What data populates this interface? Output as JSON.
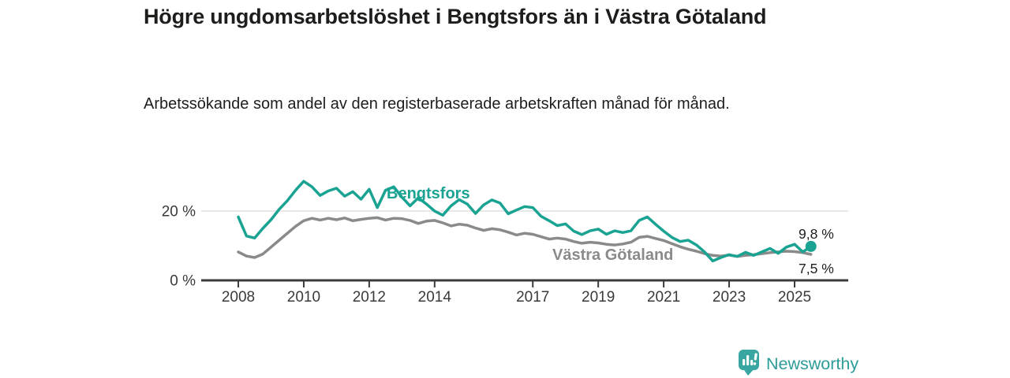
{
  "header": {
    "title": "Högre ungdomsarbetslöshet i Bengtsfors än i Västra Götaland",
    "subtitle": "Arbetssökande som andel av den registerbaserade arbetskraften månad för månad."
  },
  "chart_data": {
    "type": "line",
    "title": "Högre ungdomsarbetslöshet i Bengtsfors än i Västra Götaland",
    "subtitle": "Arbetssökande som andel av den registerbaserade arbetskraften månad för månad.",
    "xlabel": "",
    "ylabel": "",
    "xlim": [
      2006.9,
      2026.6
    ],
    "ylim": [
      0,
      32
    ],
    "grid": "horizontal gridline at 20% only",
    "legend": "inline labels on lines",
    "xticks": [
      2008,
      2010,
      2012,
      2014,
      2017,
      2019,
      2021,
      2023,
      2025
    ],
    "yticks": [
      {
        "value": 0,
        "label": "0 %"
      },
      {
        "value": 20,
        "label": "20 %"
      }
    ],
    "x": [
      2008,
      2008.25,
      2008.5,
      2008.75,
      2009,
      2009.25,
      2009.5,
      2009.75,
      2010,
      2010.25,
      2010.5,
      2010.75,
      2011,
      2011.25,
      2011.5,
      2011.75,
      2012,
      2012.25,
      2012.5,
      2012.75,
      2013,
      2013.25,
      2013.5,
      2013.75,
      2014,
      2014.25,
      2014.5,
      2014.75,
      2015,
      2015.25,
      2015.5,
      2015.75,
      2016,
      2016.25,
      2016.5,
      2016.75,
      2017,
      2017.25,
      2017.5,
      2017.75,
      2018,
      2018.25,
      2018.5,
      2018.75,
      2019,
      2019.25,
      2019.5,
      2019.75,
      2020,
      2020.25,
      2020.5,
      2020.75,
      2021,
      2021.25,
      2021.5,
      2021.75,
      2022,
      2022.25,
      2022.5,
      2022.75,
      2023,
      2023.25,
      2023.5,
      2023.75,
      2024,
      2024.25,
      2024.5,
      2024.75,
      2025,
      2025.25,
      2025.5
    ],
    "series": [
      {
        "name": "Bengtsfors",
        "color": "#1aa392",
        "end_label": "9,8 %",
        "end_value": 9.8,
        "values": [
          18.3,
          12.8,
          12.2,
          15.0,
          17.5,
          20.5,
          23.0,
          26.0,
          28.6,
          27.0,
          24.5,
          25.8,
          26.6,
          24.3,
          25.6,
          23.4,
          26.3,
          21.0,
          26.0,
          27.0,
          24.0,
          21.5,
          23.8,
          22.0,
          20.0,
          18.8,
          21.5,
          23.3,
          22.0,
          19.3,
          21.8,
          23.2,
          22.3,
          19.2,
          20.3,
          21.3,
          21.0,
          18.5,
          17.2,
          15.8,
          16.3,
          14.2,
          13.2,
          14.3,
          14.8,
          13.3,
          14.3,
          13.8,
          14.3,
          17.3,
          18.3,
          16.2,
          14.2,
          12.4,
          11.2,
          11.6,
          10.2,
          8.2,
          5.6,
          6.6,
          7.4,
          6.9,
          8.1,
          7.2,
          8.2,
          9.2,
          7.8,
          9.6,
          10.4,
          8.2,
          9.8
        ]
      },
      {
        "name": "Västra Götaland",
        "color": "#8a8a8a",
        "end_label": "7,5 %",
        "end_value": 7.5,
        "values": [
          8.2,
          7.0,
          6.6,
          7.6,
          9.6,
          11.6,
          13.6,
          15.6,
          17.2,
          17.9,
          17.4,
          17.9,
          17.5,
          18.0,
          17.2,
          17.6,
          17.9,
          18.1,
          17.4,
          17.9,
          17.8,
          17.3,
          16.4,
          17.1,
          17.3,
          16.6,
          15.7,
          16.2,
          15.9,
          15.1,
          14.4,
          14.9,
          14.6,
          13.9,
          13.1,
          13.6,
          13.3,
          12.6,
          11.9,
          12.2,
          11.9,
          11.2,
          10.7,
          11.0,
          10.8,
          10.4,
          10.2,
          10.5,
          11.0,
          12.4,
          12.7,
          12.1,
          11.5,
          10.6,
          9.7,
          9.0,
          8.4,
          7.7,
          7.2,
          7.0,
          7.3,
          6.9,
          7.2,
          7.4,
          7.7,
          8.0,
          8.2,
          8.4,
          8.3,
          8.0,
          7.5
        ]
      }
    ]
  },
  "footer": {
    "brand": "Newsworthy",
    "logo_icon": "bar-chart-speech-bubble-icon"
  },
  "colors": {
    "accent_teal": "#1aa392",
    "series_gray": "#8a8a8a",
    "grid": "#d9d9d9",
    "axis": "#3b3b3b",
    "text_dark": "#1d1d1b",
    "logo_teal": "#3aa6a2",
    "brand_text": "#2d9c99"
  }
}
